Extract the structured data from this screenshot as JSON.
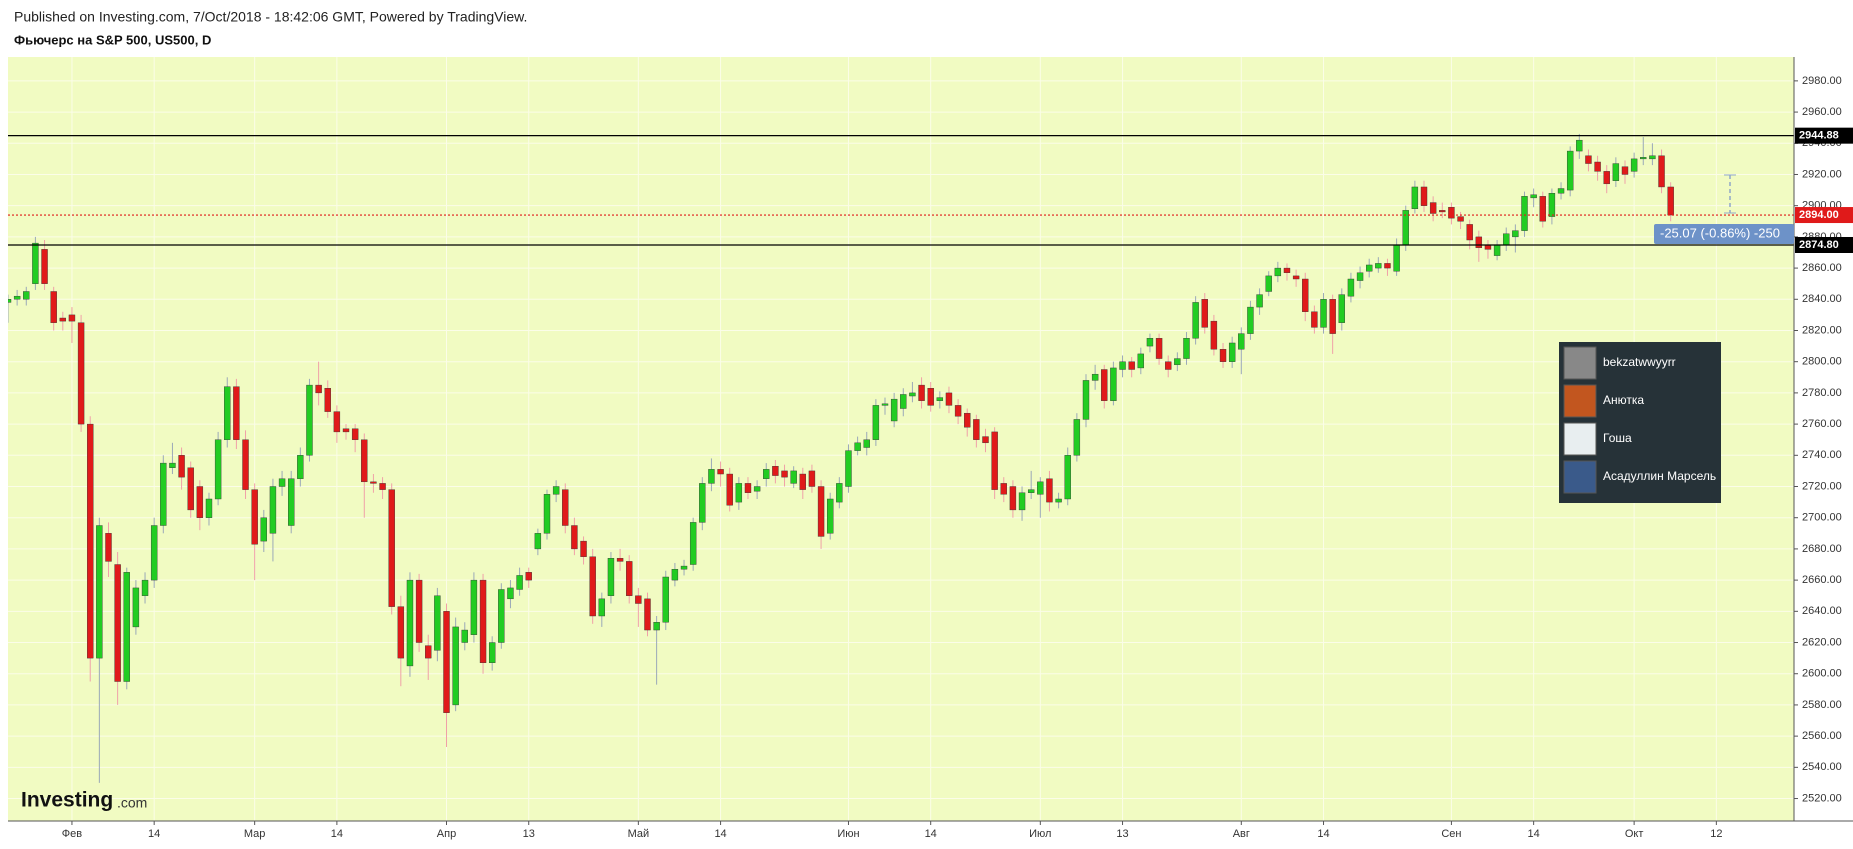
{
  "header": "Published on Investing.com, 7/Oct/2018 - 18:42:06 GMT, Powered by TradingView.",
  "logo": {
    "name": "Investing",
    "suffix": ".com"
  },
  "popup": [
    "bekzatwwyyrr",
    "Анютка",
    "Гоша",
    "Асадуллин Марсель"
  ],
  "chart_data": {
    "type": "candlestick",
    "title": "Фьючерс на S&P 500, US500, D",
    "up_color": "#22cc22",
    "down_color": "#e01a1a",
    "wick_up_color": "#9aa8b8",
    "wick_down_color": "#f0a0a8",
    "grid": true,
    "xlim": [
      0,
      195.5
    ],
    "xticks": [
      {
        "value": 7,
        "label": "Фев"
      },
      {
        "value": 16,
        "label": "14"
      },
      {
        "value": 27,
        "label": "Мар"
      },
      {
        "value": 36,
        "label": "14"
      },
      {
        "value": 48,
        "label": "Апр"
      },
      {
        "value": 57,
        "label": "13"
      },
      {
        "value": 69,
        "label": "Май"
      },
      {
        "value": 78,
        "label": "14"
      },
      {
        "value": 92,
        "label": "Июн"
      },
      {
        "value": 101,
        "label": "14"
      },
      {
        "value": 113,
        "label": "Июл"
      },
      {
        "value": 122,
        "label": "13"
      },
      {
        "value": 135,
        "label": "Авг"
      },
      {
        "value": 144,
        "label": "14"
      },
      {
        "value": 158,
        "label": "Сен"
      },
      {
        "value": 167,
        "label": "14"
      },
      {
        "value": 178,
        "label": "Окт"
      },
      {
        "value": 187,
        "label": "12"
      }
    ],
    "ylim": [
      2505.6,
      2995.3
    ],
    "yticks": [
      {
        "value": 2520,
        "label": "2520.00"
      },
      {
        "value": 2540,
        "label": "2540.00"
      },
      {
        "value": 2560,
        "label": "2560.00"
      },
      {
        "value": 2580,
        "label": "2580.00"
      },
      {
        "value": 2600,
        "label": "2600.00"
      },
      {
        "value": 2620,
        "label": "2620.00"
      },
      {
        "value": 2640,
        "label": "2640.00"
      },
      {
        "value": 2660,
        "label": "2660.00"
      },
      {
        "value": 2680,
        "label": "2680.00"
      },
      {
        "value": 2700,
        "label": "2700.00"
      },
      {
        "value": 2720,
        "label": "2720.00"
      },
      {
        "value": 2740,
        "label": "2740.00"
      },
      {
        "value": 2760,
        "label": "2760.00"
      },
      {
        "value": 2780,
        "label": "2780.00"
      },
      {
        "value": 2800,
        "label": "2800.00"
      },
      {
        "value": 2820,
        "label": "2820.00"
      },
      {
        "value": 2840,
        "label": "2840.00"
      },
      {
        "value": 2860,
        "label": "2860.00"
      },
      {
        "value": 2880,
        "label": "2880.00"
      },
      {
        "value": 2900,
        "label": "2900.00"
      },
      {
        "value": 2920,
        "label": "2920.00"
      },
      {
        "value": 2940,
        "label": "2940.00"
      },
      {
        "value": 2960,
        "label": "2960.00"
      },
      {
        "value": 2980,
        "label": "2980.00"
      }
    ],
    "hlines": [
      {
        "value": 2944.88,
        "color": "#000000"
      },
      {
        "value": 2894,
        "label": "2894.00",
        "color": "#e01a1a",
        "dotted": true
      },
      {
        "value": 2874.8,
        "label": "2874.80",
        "color": "#000000"
      }
    ],
    "annotation": "-25.07 (-0.86%) -250",
    "open": [
      2838,
      2840,
      2840,
      2850,
      2872,
      2845,
      2828,
      2830,
      2825,
      2760,
      2610,
      2690,
      2670,
      2595,
      2630,
      2650,
      2660,
      2695,
      2732,
      2740,
      2732,
      2720,
      2700,
      2712,
      2750,
      2784,
      2750,
      2718,
      2685,
      2690,
      2720,
      2695,
      2725,
      2740,
      2785,
      2783,
      2768,
      2757,
      2757,
      2750,
      2723,
      2722,
      2718,
      2643,
      2605,
      2660,
      2618,
      2615,
      2640,
      2580,
      2620,
      2625,
      2660,
      2607,
      2620,
      2648,
      2654,
      2665,
      2680,
      2690,
      2715,
      2718,
      2695,
      2685,
      2675,
      2637,
      2650,
      2674,
      2672,
      2650,
      2648,
      2628,
      2633,
      2660,
      2667,
      2670,
      2697,
      2722,
      2731,
      2728,
      2710,
      2722,
      2717,
      2725,
      2733,
      2730,
      2722,
      2728,
      2730,
      2720,
      2690,
      2710,
      2720,
      2743,
      2745,
      2750,
      2772,
      2762,
      2770,
      2778,
      2785,
      2783,
      2775,
      2780,
      2772,
      2767,
      2763,
      2752,
      2755,
      2722,
      2720,
      2705,
      2716,
      2715,
      2725,
      2710,
      2712,
      2740,
      2763,
      2788,
      2795,
      2775,
      2795,
      2800,
      2796,
      2810,
      2815,
      2800,
      2798,
      2802,
      2815,
      2840,
      2826,
      2808,
      2800,
      2808,
      2818,
      2835,
      2845,
      2855,
      2860,
      2855,
      2853,
      2832,
      2822,
      2840,
      2825,
      2842,
      2852,
      2858,
      2860,
      2863,
      2858,
      2875,
      2898,
      2912,
      2902,
      2897,
      2899,
      2893,
      2888,
      2880,
      2875,
      2868,
      2875,
      2880,
      2884,
      2905,
      2906,
      2893,
      2908,
      2910,
      2935,
      2932,
      2928,
      2922,
      2916,
      2925,
      2922,
      2930,
      2930,
      2932,
      2912
    ],
    "high": [
      2843,
      2846,
      2848,
      2880,
      2878,
      2848,
      2832,
      2835,
      2830,
      2765,
      2700,
      2697,
      2678,
      2668,
      2660,
      2665,
      2700,
      2740,
      2748,
      2745,
      2736,
      2724,
      2716,
      2755,
      2790,
      2789,
      2756,
      2722,
      2705,
      2725,
      2730,
      2730,
      2745,
      2789,
      2800,
      2788,
      2772,
      2760,
      2760,
      2754,
      2728,
      2726,
      2722,
      2650,
      2665,
      2664,
      2625,
      2655,
      2645,
      2636,
      2633,
      2665,
      2664,
      2624,
      2658,
      2660,
      2668,
      2668,
      2693,
      2718,
      2724,
      2722,
      2700,
      2688,
      2680,
      2652,
      2678,
      2680,
      2676,
      2655,
      2652,
      2637,
      2666,
      2671,
      2673,
      2700,
      2726,
      2738,
      2736,
      2732,
      2726,
      2726,
      2724,
      2735,
      2737,
      2734,
      2733,
      2732,
      2734,
      2724,
      2716,
      2726,
      2747,
      2752,
      2755,
      2776,
      2777,
      2780,
      2783,
      2787,
      2790,
      2787,
      2781,
      2784,
      2776,
      2770,
      2766,
      2757,
      2758,
      2726,
      2724,
      2720,
      2730,
      2726,
      2730,
      2716,
      2745,
      2767,
      2792,
      2798,
      2798,
      2800,
      2804,
      2803,
      2809,
      2818,
      2818,
      2804,
      2806,
      2819,
      2842,
      2844,
      2830,
      2812,
      2816,
      2822,
      2839,
      2847,
      2858,
      2864,
      2863,
      2859,
      2857,
      2836,
      2844,
      2843,
      2847,
      2857,
      2861,
      2866,
      2867,
      2866,
      2879,
      2900,
      2916,
      2916,
      2906,
      2902,
      2902,
      2896,
      2891,
      2884,
      2878,
      2878,
      2886,
      2888,
      2909,
      2911,
      2909,
      2911,
      2915,
      2938,
      2946,
      2936,
      2932,
      2926,
      2931,
      2929,
      2934,
      2944,
      2940,
      2936,
      2915
    ],
    "low": [
      2825,
      2836,
      2836,
      2846,
      2846,
      2820,
      2820,
      2812,
      2755,
      2595,
      2530,
      2662,
      2580,
      2590,
      2625,
      2645,
      2655,
      2690,
      2728,
      2718,
      2700,
      2692,
      2695,
      2708,
      2745,
      2744,
      2712,
      2660,
      2678,
      2672,
      2714,
      2690,
      2720,
      2736,
      2772,
      2764,
      2748,
      2750,
      2742,
      2700,
      2716,
      2712,
      2638,
      2592,
      2598,
      2614,
      2596,
      2608,
      2553,
      2576,
      2615,
      2620,
      2600,
      2602,
      2616,
      2642,
      2650,
      2655,
      2676,
      2686,
      2710,
      2690,
      2676,
      2670,
      2632,
      2630,
      2645,
      2666,
      2645,
      2630,
      2624,
      2593,
      2628,
      2656,
      2663,
      2666,
      2692,
      2717,
      2720,
      2704,
      2705,
      2712,
      2712,
      2720,
      2722,
      2720,
      2719,
      2712,
      2716,
      2680,
      2686,
      2706,
      2716,
      2740,
      2740,
      2746,
      2766,
      2758,
      2765,
      2774,
      2770,
      2768,
      2770,
      2767,
      2760,
      2752,
      2745,
      2742,
      2712,
      2710,
      2700,
      2698,
      2712,
      2700,
      2704,
      2706,
      2708,
      2736,
      2758,
      2782,
      2770,
      2772,
      2790,
      2790,
      2792,
      2806,
      2798,
      2790,
      2794,
      2798,
      2811,
      2818,
      2804,
      2796,
      2796,
      2792,
      2814,
      2830,
      2842,
      2851,
      2852,
      2848,
      2826,
      2818,
      2818,
      2805,
      2820,
      2838,
      2847,
      2854,
      2857,
      2855,
      2855,
      2871,
      2895,
      2896,
      2890,
      2892,
      2888,
      2885,
      2872,
      2864,
      2866,
      2865,
      2871,
      2870,
      2880,
      2899,
      2886,
      2888,
      2904,
      2906,
      2930,
      2922,
      2916,
      2908,
      2912,
      2914,
      2918,
      2926,
      2926,
      2908,
      2890
    ],
    "close": [
      2840,
      2842,
      2845,
      2876,
      2850,
      2825,
      2826,
      2826,
      2760,
      2610,
      2695,
      2672,
      2595,
      2665,
      2655,
      2660,
      2695,
      2735,
      2735,
      2726,
      2705,
      2700,
      2712,
      2750,
      2784,
      2750,
      2718,
      2683,
      2700,
      2720,
      2725,
      2725,
      2740,
      2785,
      2780,
      2768,
      2755,
      2755,
      2750,
      2723,
      2722,
      2718,
      2643,
      2610,
      2660,
      2620,
      2610,
      2650,
      2575,
      2630,
      2628,
      2660,
      2607,
      2620,
      2654,
      2655,
      2663,
      2660,
      2690,
      2715,
      2720,
      2695,
      2680,
      2675,
      2637,
      2648,
      2674,
      2672,
      2650,
      2645,
      2628,
      2633,
      2662,
      2667,
      2669,
      2697,
      2722,
      2731,
      2728,
      2708,
      2722,
      2716,
      2720,
      2731,
      2727,
      2726,
      2730,
      2718,
      2720,
      2688,
      2712,
      2722,
      2743,
      2748,
      2750,
      2772,
      2773,
      2776,
      2779,
      2780,
      2775,
      2772,
      2777,
      2772,
      2765,
      2758,
      2750,
      2748,
      2718,
      2715,
      2705,
      2716,
      2718,
      2723,
      2710,
      2712,
      2740,
      2763,
      2788,
      2792,
      2775,
      2796,
      2800,
      2795,
      2805,
      2815,
      2802,
      2795,
      2802,
      2815,
      2838,
      2822,
      2808,
      2800,
      2812,
      2818,
      2835,
      2843,
      2855,
      2860,
      2857,
      2853,
      2832,
      2822,
      2840,
      2818,
      2843,
      2853,
      2857,
      2862,
      2863,
      2860,
      2875,
      2897,
      2912,
      2900,
      2895,
      2896,
      2892,
      2890,
      2878,
      2873,
      2872,
      2875,
      2882,
      2884,
      2906,
      2907,
      2890,
      2908,
      2911,
      2935,
      2942,
      2927,
      2922,
      2914,
      2927,
      2920,
      2930,
      2931,
      2932,
      2912,
      2894
    ]
  }
}
